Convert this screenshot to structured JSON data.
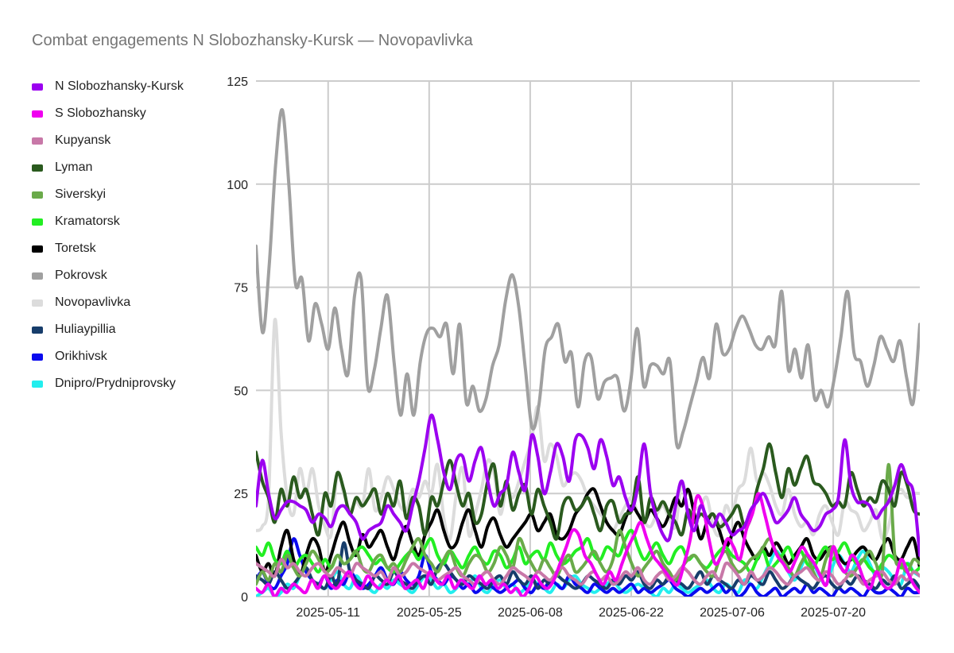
{
  "chart_data": {
    "type": "line",
    "title": "Combat engagements N Slobozhansky-Kursk — Novopavlivka",
    "xlabel": "",
    "ylabel": "",
    "ylim": [
      0,
      125
    ],
    "xlim": [
      "2025-05-01",
      "2025-08-01"
    ],
    "yticks": [
      0,
      25,
      50,
      75,
      100,
      125
    ],
    "xticks": [
      "2025-05-11",
      "2025-05-25",
      "2025-06-08",
      "2025-06-22",
      "2025-07-06",
      "2025-07-20"
    ],
    "grid": true,
    "legend_position": "left",
    "series": [
      {
        "name": "N Slobozhansky-Kursk",
        "color": "#9b00f0",
        "values": [
          22,
          33,
          25,
          19,
          21,
          23,
          23,
          22,
          21,
          18,
          20,
          19,
          17,
          21,
          22,
          20,
          18,
          14,
          16,
          17,
          18,
          22,
          20,
          18,
          16,
          22,
          28,
          36,
          44,
          38,
          30,
          26,
          33,
          34,
          28,
          33,
          36,
          28,
          22,
          25,
          27,
          35,
          30,
          26,
          39,
          34,
          25,
          30,
          37,
          34,
          28,
          38,
          39,
          36,
          31,
          38,
          34,
          27,
          29,
          24,
          21,
          27,
          37,
          25,
          19,
          15,
          14,
          22,
          28,
          20,
          16,
          22,
          19,
          17,
          20,
          18,
          15,
          16,
          17,
          21,
          23,
          25,
          22,
          18,
          19,
          21,
          24,
          20,
          18,
          16,
          17,
          20,
          21,
          24,
          38,
          27,
          23,
          23,
          22,
          19,
          21,
          23,
          27,
          32,
          28,
          25,
          10
        ]
      },
      {
        "name": "S Slobozhansky",
        "color": "#f000f0",
        "values": [
          2,
          1,
          3,
          0,
          2,
          1,
          3,
          2,
          1,
          4,
          2,
          5,
          3,
          2,
          4,
          6,
          3,
          2,
          5,
          3,
          2,
          4,
          3,
          5,
          2,
          3,
          4,
          2,
          6,
          4,
          3,
          5,
          2,
          4,
          3,
          2,
          5,
          3,
          4,
          2,
          3,
          1,
          2,
          0,
          2,
          5,
          3,
          2,
          4,
          8,
          12,
          16,
          15,
          10,
          8,
          5,
          3,
          6,
          4,
          8,
          12,
          15,
          18,
          14,
          10,
          8,
          6,
          4,
          3,
          8,
          14,
          24,
          22,
          14,
          8,
          10,
          14,
          12,
          9,
          16,
          20,
          25,
          20,
          14,
          10,
          8,
          6,
          9,
          12,
          10,
          8,
          5,
          3,
          12,
          8,
          6,
          10,
          8,
          4,
          2,
          6,
          3,
          2,
          4,
          9,
          6,
          3,
          1
        ]
      },
      {
        "name": "Kupyansk",
        "color": "#c878a8",
        "values": [
          8,
          7,
          6,
          5,
          9,
          7,
          8,
          6,
          5,
          7,
          8,
          6,
          5,
          7,
          6,
          5,
          8,
          7,
          6,
          5,
          6,
          4,
          7,
          5,
          6,
          8,
          7,
          6,
          5,
          4,
          5,
          6,
          7,
          5,
          4,
          3,
          5,
          6,
          4,
          3,
          5,
          7,
          6,
          5,
          4,
          6,
          5,
          4,
          6,
          7,
          5,
          4,
          3,
          5,
          6,
          4,
          5,
          3,
          4,
          6,
          5,
          7,
          4,
          3,
          5,
          6,
          4,
          5,
          7,
          6,
          4,
          3,
          5,
          6,
          4,
          8,
          7,
          5,
          3,
          6,
          4,
          5,
          7,
          6,
          4,
          3,
          5,
          6,
          7,
          5,
          4,
          6,
          5,
          3,
          4,
          6,
          5,
          3,
          4,
          5,
          6,
          4,
          3,
          5,
          4,
          6,
          5
        ]
      },
      {
        "name": "Lyman",
        "color": "#2a5a1e",
        "values": [
          35,
          28,
          24,
          18,
          26,
          22,
          29,
          24,
          26,
          20,
          15,
          25,
          22,
          30,
          26,
          20,
          24,
          22,
          24,
          26,
          20,
          25,
          22,
          28,
          19,
          24,
          22,
          15,
          24,
          22,
          28,
          33,
          27,
          22,
          25,
          18,
          20,
          28,
          32,
          22,
          28,
          21,
          25,
          27,
          20,
          26,
          22,
          18,
          14,
          22,
          24,
          21,
          22,
          24,
          20,
          16,
          22,
          23,
          18,
          20,
          21,
          29,
          18,
          24,
          21,
          23,
          20,
          18,
          15,
          21,
          18,
          20,
          19,
          20,
          17,
          18,
          20,
          22,
          17,
          19,
          26,
          31,
          37,
          30,
          24,
          31,
          27,
          31,
          34,
          28,
          27,
          25,
          22,
          23,
          22,
          30,
          26,
          22,
          24,
          23,
          28,
          26,
          22,
          30,
          27,
          21,
          20
        ]
      },
      {
        "name": "Siverskyi",
        "color": "#6aaa4a",
        "values": [
          3,
          6,
          4,
          8,
          6,
          10,
          7,
          5,
          8,
          11,
          9,
          6,
          7,
          10,
          8,
          9,
          11,
          7,
          6,
          9,
          10,
          7,
          8,
          6,
          9,
          12,
          14,
          10,
          8,
          6,
          9,
          11,
          7,
          5,
          8,
          10,
          9,
          6,
          8,
          12,
          10,
          7,
          14,
          11,
          8,
          6,
          9,
          7,
          5,
          8,
          10,
          6,
          7,
          9,
          11,
          8,
          6,
          9,
          16,
          12,
          8,
          5,
          7,
          9,
          11,
          8,
          6,
          4,
          7,
          9,
          10,
          8,
          6,
          5,
          9,
          11,
          8,
          6,
          7,
          9,
          10,
          12,
          14,
          11,
          9,
          7,
          5,
          8,
          10,
          6,
          4,
          9,
          12,
          8,
          6,
          5,
          7,
          9,
          11,
          8,
          6,
          32,
          10,
          8,
          6,
          9,
          8
        ]
      },
      {
        "name": "Kramatorsk",
        "color": "#22ee22",
        "values": [
          12,
          10,
          13,
          9,
          8,
          11,
          7,
          9,
          10,
          8,
          6,
          9,
          7,
          10,
          8,
          9,
          11,
          12,
          10,
          8,
          9,
          7,
          6,
          8,
          10,
          11,
          9,
          12,
          14,
          10,
          8,
          11,
          9,
          7,
          10,
          12,
          9,
          8,
          11,
          10,
          7,
          9,
          12,
          8,
          10,
          11,
          9,
          13,
          10,
          8,
          9,
          11,
          12,
          14,
          10,
          9,
          12,
          11,
          10,
          14,
          16,
          12,
          9,
          11,
          13,
          10,
          8,
          11,
          12,
          9,
          10,
          8,
          7,
          9,
          11,
          12,
          10,
          9,
          8,
          6,
          9,
          11,
          7,
          8,
          10,
          12,
          9,
          11,
          8,
          7,
          10,
          12,
          9,
          11,
          13,
          10,
          8,
          9,
          7,
          6,
          8,
          10,
          9,
          7,
          8,
          6,
          7
        ]
      },
      {
        "name": "Toretsk",
        "color": "#000000",
        "values": [
          10,
          6,
          8,
          5,
          12,
          16,
          9,
          5,
          10,
          14,
          12,
          6,
          10,
          15,
          18,
          13,
          10,
          15,
          12,
          14,
          16,
          12,
          9,
          14,
          17,
          13,
          10,
          15,
          18,
          21,
          16,
          12,
          13,
          18,
          21,
          16,
          12,
          17,
          19,
          15,
          12,
          14,
          16,
          18,
          20,
          16,
          18,
          20,
          15,
          14,
          16,
          20,
          22,
          25,
          26,
          22,
          18,
          16,
          15,
          19,
          22,
          20,
          18,
          21,
          19,
          17,
          20,
          24,
          22,
          26,
          20,
          14,
          18,
          20,
          16,
          12,
          15,
          18,
          14,
          11,
          9,
          12,
          10,
          13,
          11,
          8,
          10,
          12,
          14,
          10,
          9,
          11,
          12,
          10,
          8,
          9,
          11,
          12,
          10,
          9,
          12,
          14,
          10,
          9,
          12,
          14,
          7
        ]
      },
      {
        "name": "Pokrovsk",
        "color": "#a0a0a0",
        "values": [
          85,
          64,
          80,
          105,
          118,
          100,
          76,
          77,
          62,
          71,
          66,
          60,
          70,
          60,
          54,
          73,
          77,
          51,
          55,
          65,
          73,
          57,
          44,
          54,
          44,
          57,
          64,
          65,
          63,
          66,
          54,
          66,
          47,
          51,
          45,
          48,
          56,
          61,
          72,
          78,
          70,
          55,
          41,
          46,
          60,
          63,
          66,
          57,
          59,
          46,
          57,
          58,
          48,
          52,
          53,
          53,
          45,
          52,
          65,
          51,
          56,
          56,
          54,
          57,
          37,
          40,
          46,
          52,
          58,
          53,
          66,
          59,
          60,
          65,
          68,
          65,
          61,
          60,
          63,
          61,
          74,
          55,
          60,
          53,
          61,
          48,
          50,
          46,
          53,
          63,
          74,
          59,
          57,
          51,
          56,
          63,
          60,
          57,
          62,
          53,
          47,
          66
        ]
      },
      {
        "name": "Novopavlivka",
        "color": "#dcdcdc",
        "values": [
          16,
          17,
          24,
          67,
          40,
          24,
          20,
          31,
          25,
          31,
          22,
          17,
          15,
          30,
          25,
          21,
          23,
          22,
          31,
          21,
          24,
          29,
          26,
          22,
          21,
          26,
          24,
          28,
          25,
          32,
          19,
          14,
          25,
          31,
          15,
          20,
          26,
          33,
          30,
          20,
          26,
          24,
          28,
          33,
          38,
          46,
          33,
          37,
          34,
          27,
          29,
          30,
          28,
          24,
          22,
          20,
          18,
          16,
          19,
          22,
          24,
          20,
          18,
          17,
          20,
          22,
          19,
          17,
          28,
          20,
          21,
          22,
          24,
          17,
          15,
          22,
          20,
          26,
          28,
          36,
          28,
          30,
          27,
          22,
          20,
          26,
          20,
          17,
          18,
          15,
          20,
          22,
          18,
          15,
          23,
          21,
          20,
          16,
          18,
          21,
          14,
          17,
          24,
          26,
          24,
          25,
          25
        ]
      },
      {
        "name": "Huliaypillia",
        "color": "#173d6b",
        "values": [
          5,
          4,
          3,
          6,
          4,
          2,
          3,
          5,
          7,
          4,
          3,
          2,
          5,
          3,
          13,
          6,
          4,
          3,
          2,
          5,
          4,
          3,
          6,
          4,
          3,
          2,
          4,
          5,
          3,
          7,
          8,
          6,
          4,
          3,
          5,
          4,
          3,
          2,
          4,
          5,
          3,
          6,
          4,
          3,
          5,
          2,
          4,
          3,
          5,
          4,
          3,
          2,
          3,
          5,
          4,
          3,
          2,
          4,
          3,
          5,
          4,
          6,
          3,
          2,
          4,
          3,
          5,
          4,
          3,
          2,
          4,
          6,
          3,
          5,
          4,
          3,
          2,
          4,
          3,
          5,
          4,
          3,
          6,
          4,
          2,
          3,
          5,
          4,
          3,
          2,
          4,
          5,
          3,
          2,
          4,
          3,
          5,
          4,
          3,
          2,
          4,
          3,
          5,
          2,
          3,
          4,
          2
        ]
      },
      {
        "name": "Orikhivsk",
        "color": "#0a0aee",
        "values": [
          4,
          6,
          3,
          2,
          5,
          8,
          14,
          10,
          6,
          4,
          3,
          5,
          2,
          4,
          3,
          6,
          4,
          2,
          3,
          5,
          7,
          4,
          3,
          6,
          4,
          3,
          5,
          10,
          6,
          4,
          3,
          5,
          4,
          2,
          3,
          1,
          2,
          3,
          2,
          1,
          2,
          3,
          4,
          2,
          1,
          3,
          2,
          4,
          3,
          2,
          5,
          3,
          2,
          1,
          3,
          2,
          1,
          2,
          1,
          2,
          3,
          1,
          2,
          1,
          2,
          3,
          4,
          2,
          1,
          0,
          1,
          2,
          1,
          2,
          3,
          1,
          2,
          0,
          1,
          3,
          1,
          0,
          1,
          2,
          0,
          1,
          2,
          1,
          3,
          1,
          2,
          1,
          0,
          2,
          1,
          2,
          1,
          0,
          2,
          1,
          1,
          2,
          1,
          0,
          2,
          1,
          1
        ]
      },
      {
        "name": "Dnipro/Prydniprovsky",
        "color": "#22eeee",
        "values": [
          0,
          1,
          2,
          0,
          1,
          3,
          2,
          5,
          7,
          4,
          3,
          2,
          4,
          6,
          3,
          2,
          5,
          3,
          2,
          1,
          3,
          2,
          4,
          3,
          2,
          1,
          3,
          5,
          4,
          2,
          3,
          1,
          2,
          4,
          3,
          5,
          2,
          1,
          3,
          4,
          2,
          3,
          1,
          2,
          4,
          3,
          2,
          1,
          3,
          2,
          4,
          5,
          3,
          2,
          1,
          2,
          3,
          4,
          2,
          1,
          2,
          3,
          2,
          1,
          0,
          2,
          1,
          3,
          2,
          1,
          2,
          3,
          4,
          2,
          1,
          3,
          2,
          1,
          4,
          3,
          2,
          5,
          8,
          11,
          9,
          6,
          4,
          7,
          10,
          8,
          5,
          3,
          7,
          10,
          8,
          6,
          9,
          11,
          8,
          5,
          7,
          6,
          4,
          3,
          8,
          6,
          5
        ]
      }
    ]
  }
}
